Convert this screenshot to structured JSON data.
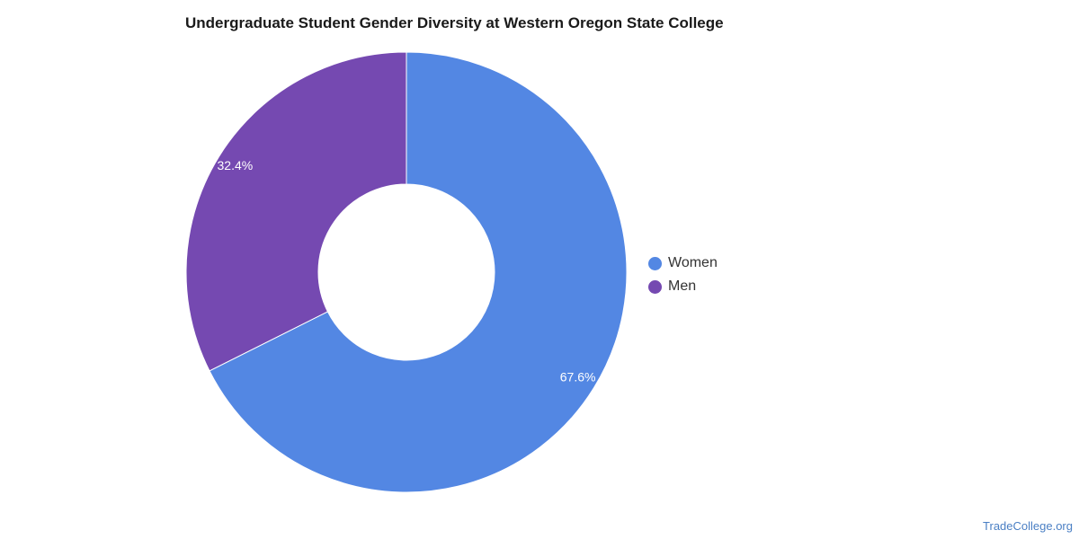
{
  "chart_data": {
    "type": "pie",
    "title": "Undergraduate Student Gender Diversity at Western Oregon State College",
    "donut": true,
    "legend_position": "right",
    "slices": [
      {
        "name": "Women",
        "value": 67.6,
        "label": "67.6%",
        "color": "#5387e3"
      },
      {
        "name": "Men",
        "value": 32.4,
        "label": "32.4%",
        "color": "#7549b1"
      }
    ]
  },
  "watermark": "TradeCollege.org"
}
